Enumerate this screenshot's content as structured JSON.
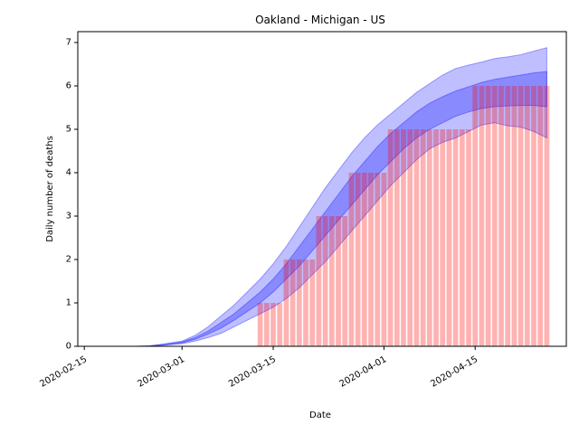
{
  "chart_data": {
    "type": "bar",
    "title": "Oakland - Michigan - US",
    "xlabel": "Date",
    "ylabel": "Daily number of deaths",
    "xlim": [
      "2020-02-14",
      "2020-04-29"
    ],
    "ylim": [
      0,
      7.25
    ],
    "x_ticks": [
      "2020-02-15",
      "2020-03-01",
      "2020-03-15",
      "2020-04-01",
      "2020-04-15"
    ],
    "y_ticks": [
      0,
      1,
      2,
      3,
      4,
      5,
      6,
      7
    ],
    "grid": false,
    "colors": {
      "bars": "#ff0000",
      "bands": "#0000ff"
    },
    "bars": {
      "dates": [
        "2020-03-13",
        "2020-03-14",
        "2020-03-15",
        "2020-03-16",
        "2020-03-17",
        "2020-03-18",
        "2020-03-19",
        "2020-03-20",
        "2020-03-21",
        "2020-03-22",
        "2020-03-23",
        "2020-03-24",
        "2020-03-25",
        "2020-03-26",
        "2020-03-27",
        "2020-03-28",
        "2020-03-29",
        "2020-03-30",
        "2020-03-31",
        "2020-04-01",
        "2020-04-02",
        "2020-04-03",
        "2020-04-04",
        "2020-04-05",
        "2020-04-06",
        "2020-04-07",
        "2020-04-08",
        "2020-04-09",
        "2020-04-10",
        "2020-04-11",
        "2020-04-12",
        "2020-04-13",
        "2020-04-14",
        "2020-04-15",
        "2020-04-16",
        "2020-04-17",
        "2020-04-18",
        "2020-04-19",
        "2020-04-20",
        "2020-04-21",
        "2020-04-22",
        "2020-04-23",
        "2020-04-24",
        "2020-04-25",
        "2020-04-26"
      ],
      "values": [
        1,
        1,
        1,
        1,
        2,
        2,
        2,
        2,
        2,
        3,
        3,
        3,
        3,
        3,
        4,
        4,
        4,
        4,
        4,
        4,
        5,
        5,
        5,
        5,
        5,
        5,
        5,
        5,
        5,
        5,
        5,
        5,
        5,
        6,
        6,
        6,
        6,
        6,
        6,
        6,
        6,
        6,
        6,
        6,
        6
      ]
    },
    "band_dates": [
      "2020-02-23",
      "2020-02-25",
      "2020-02-27",
      "2020-03-01",
      "2020-03-03",
      "2020-03-05",
      "2020-03-07",
      "2020-03-09",
      "2020-03-11",
      "2020-03-13",
      "2020-03-15",
      "2020-03-17",
      "2020-03-19",
      "2020-03-21",
      "2020-03-23",
      "2020-03-25",
      "2020-03-27",
      "2020-03-29",
      "2020-03-31",
      "2020-04-02",
      "2020-04-04",
      "2020-04-06",
      "2020-04-08",
      "2020-04-10",
      "2020-04-12",
      "2020-04-14",
      "2020-04-16",
      "2020-04-18",
      "2020-04-20",
      "2020-04-22",
      "2020-04-24",
      "2020-04-26"
    ],
    "outer_low": [
      0,
      0.005,
      0.02,
      0.06,
      0.12,
      0.2,
      0.3,
      0.45,
      0.6,
      0.75,
      0.9,
      1.1,
      1.35,
      1.65,
      1.95,
      2.3,
      2.65,
      3.0,
      3.35,
      3.7,
      4.0,
      4.3,
      4.55,
      4.7,
      4.8,
      4.95,
      5.1,
      5.15,
      5.08,
      5.05,
      4.95,
      4.8
    ],
    "outer_high": [
      0,
      0.01,
      0.05,
      0.12,
      0.25,
      0.45,
      0.7,
      0.95,
      1.25,
      1.55,
      1.9,
      2.3,
      2.75,
      3.2,
      3.65,
      4.05,
      4.45,
      4.8,
      5.1,
      5.35,
      5.6,
      5.85,
      6.05,
      6.25,
      6.4,
      6.48,
      6.55,
      6.63,
      6.67,
      6.72,
      6.8,
      6.88
    ],
    "inner_low": [
      0,
      0.008,
      0.03,
      0.08,
      0.16,
      0.28,
      0.42,
      0.6,
      0.8,
      1.0,
      1.25,
      1.55,
      1.85,
      2.2,
      2.55,
      2.9,
      3.25,
      3.6,
      3.95,
      4.25,
      4.55,
      4.8,
      5.0,
      5.15,
      5.3,
      5.4,
      5.48,
      5.52,
      5.54,
      5.55,
      5.55,
      5.52
    ],
    "inner_high": [
      0,
      0.01,
      0.04,
      0.1,
      0.2,
      0.35,
      0.55,
      0.75,
      1.0,
      1.25,
      1.55,
      1.9,
      2.3,
      2.7,
      3.1,
      3.5,
      3.9,
      4.25,
      4.6,
      4.9,
      5.15,
      5.4,
      5.6,
      5.75,
      5.88,
      5.98,
      6.08,
      6.15,
      6.2,
      6.25,
      6.3,
      6.33
    ]
  }
}
